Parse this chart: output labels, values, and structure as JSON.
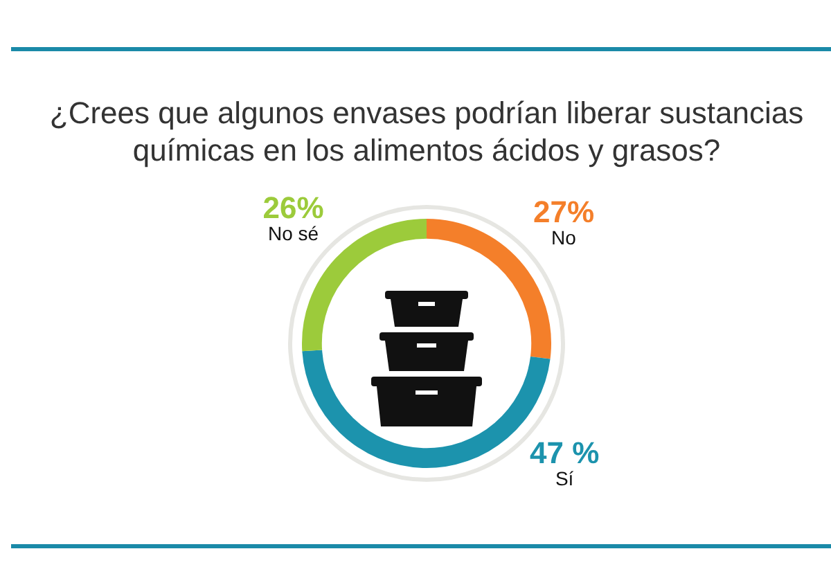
{
  "chart_data": {
    "type": "donut",
    "title": "¿Crees que algunos envases podrían liberar sustancias químicas en los alimentos ácidos y grasos?",
    "categories": [
      "No",
      "Sí",
      "No sé"
    ],
    "values": [
      27,
      47,
      26
    ],
    "colors": [
      "#f47f2a",
      "#1c93ad",
      "#9ccb3b"
    ],
    "value_labels": [
      "27%",
      "47 %",
      "26%"
    ]
  }
}
